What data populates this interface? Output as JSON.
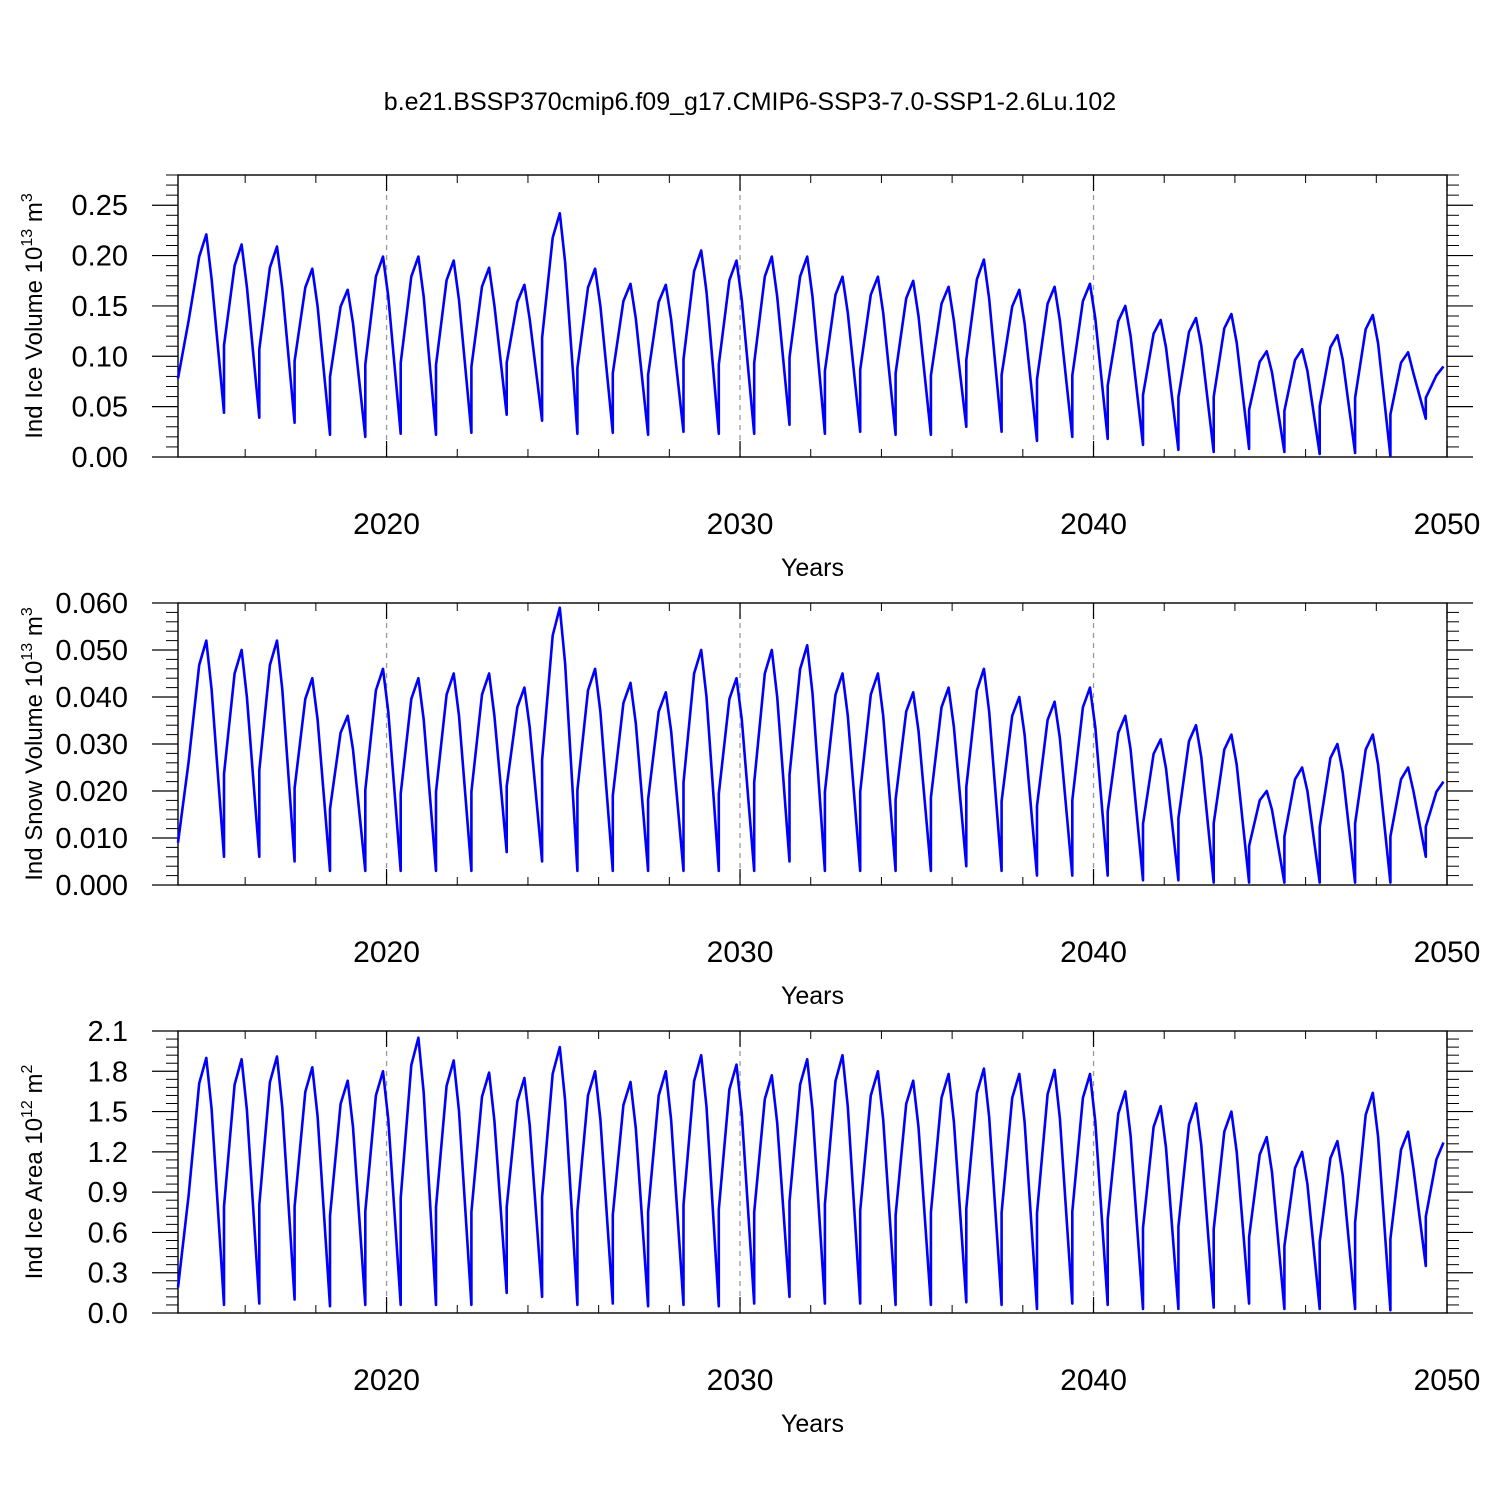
{
  "figure": {
    "title": "b.e21.BSSP370cmip6.f09_g17.CMIP6-SSP3-7.0-SSP1-2.6Lu.102",
    "line_color": "#0000ff",
    "grid_color": "#999999"
  },
  "chart_data": [
    {
      "type": "line",
      "id": "ice-volume",
      "title": "",
      "xlabel": "Years",
      "ylabel": {
        "base": "Ind Ice Volume 10",
        "exp": "13",
        "unit": " m",
        "unit_exp": "3"
      },
      "xlim": [
        2014.1,
        2050.0
      ],
      "ylim": [
        0,
        0.28
      ],
      "xticks": [
        2020,
        2030,
        2040,
        2050
      ],
      "yticks": [
        0.0,
        0.05,
        0.1,
        0.15,
        0.2,
        0.25
      ],
      "ytick_labels": [
        "0.00",
        "0.05",
        "0.10",
        "0.15",
        "0.20",
        "0.25"
      ],
      "grid": "dashed vertical at decades",
      "series": [
        {
          "name": "Ind Ice Volume",
          "start_year": 2014.1,
          "peak_time": 2014.9,
          "maxima": [
            0.221,
            0.211,
            0.209,
            0.187,
            0.166,
            0.199,
            0.199,
            0.195,
            0.188,
            0.171,
            0.242,
            0.187,
            0.172,
            0.171,
            0.205,
            0.195,
            0.199,
            0.199,
            0.179,
            0.179,
            0.175,
            0.169,
            0.196,
            0.166,
            0.169,
            0.172,
            0.15,
            0.136,
            0.138,
            0.142,
            0.105,
            0.107,
            0.121,
            0.141,
            0.104,
            0.09
          ],
          "minima": [
            0.078,
            0.044,
            0.039,
            0.034,
            0.022,
            0.02,
            0.023,
            0.022,
            0.024,
            0.042,
            0.036,
            0.023,
            0.024,
            0.022,
            0.025,
            0.023,
            0.023,
            0.032,
            0.023,
            0.025,
            0.022,
            0.022,
            0.03,
            0.025,
            0.016,
            0.02,
            0.018,
            0.012,
            0.007,
            0.005,
            0.008,
            0.005,
            0.003,
            0.004,
            0.001,
            0.038
          ]
        }
      ]
    },
    {
      "type": "line",
      "id": "snow-volume",
      "title": "",
      "xlabel": "Years",
      "ylabel": {
        "base": "Ind Snow Volume 10",
        "exp": "13",
        "unit": " m",
        "unit_exp": "3"
      },
      "xlim": [
        2014.1,
        2050.0
      ],
      "ylim": [
        0,
        0.06
      ],
      "xticks": [
        2020,
        2030,
        2040,
        2050
      ],
      "yticks": [
        0.0,
        0.01,
        0.02,
        0.03,
        0.04,
        0.05,
        0.06
      ],
      "ytick_labels": [
        "0.000",
        "0.010",
        "0.020",
        "0.030",
        "0.040",
        "0.050",
        "0.060"
      ],
      "grid": "dashed vertical at decades",
      "series": [
        {
          "name": "Ind Snow Volume",
          "start_year": 2014.1,
          "peak_time": 2014.9,
          "maxima": [
            0.052,
            0.05,
            0.052,
            0.044,
            0.036,
            0.046,
            0.044,
            0.045,
            0.045,
            0.042,
            0.059,
            0.046,
            0.043,
            0.041,
            0.05,
            0.044,
            0.05,
            0.051,
            0.045,
            0.045,
            0.041,
            0.042,
            0.046,
            0.04,
            0.039,
            0.042,
            0.036,
            0.031,
            0.034,
            0.032,
            0.02,
            0.025,
            0.03,
            0.032,
            0.025,
            0.022
          ],
          "minima": [
            0.009,
            0.006,
            0.006,
            0.005,
            0.003,
            0.003,
            0.003,
            0.003,
            0.003,
            0.007,
            0.005,
            0.003,
            0.003,
            0.003,
            0.003,
            0.003,
            0.003,
            0.005,
            0.003,
            0.003,
            0.003,
            0.003,
            0.004,
            0.003,
            0.002,
            0.002,
            0.002,
            0.001,
            0.001,
            0.0005,
            0.0005,
            0.0005,
            0.0005,
            0.0005,
            0.0005,
            0.006
          ]
        }
      ]
    },
    {
      "type": "line",
      "id": "ice-area",
      "title": "",
      "xlabel": "Years",
      "ylabel": {
        "base": "Ind Ice Area 10",
        "exp": "12",
        "unit": " m",
        "unit_exp": "2"
      },
      "xlim": [
        2014.1,
        2050.0
      ],
      "ylim": [
        0,
        2.1
      ],
      "xticks": [
        2020,
        2030,
        2040,
        2050
      ],
      "yticks": [
        0.0,
        0.3,
        0.6,
        0.9,
        1.2,
        1.5,
        1.8,
        2.1
      ],
      "ytick_labels": [
        "0.0",
        "0.3",
        "0.6",
        "0.9",
        "1.2",
        "1.5",
        "1.8",
        "2.1"
      ],
      "grid": "dashed vertical at decades",
      "series": [
        {
          "name": "Ind Ice Area",
          "start_year": 2014.1,
          "peak_time": 2014.9,
          "maxima": [
            1.9,
            1.89,
            1.91,
            1.83,
            1.73,
            1.8,
            2.05,
            1.88,
            1.79,
            1.75,
            1.98,
            1.8,
            1.72,
            1.8,
            1.92,
            1.85,
            1.77,
            1.89,
            1.92,
            1.8,
            1.73,
            1.78,
            1.82,
            1.78,
            1.81,
            1.78,
            1.65,
            1.54,
            1.56,
            1.5,
            1.31,
            1.2,
            1.28,
            1.64,
            1.35,
            1.27
          ],
          "minima": [
            0.19,
            0.06,
            0.07,
            0.1,
            0.05,
            0.06,
            0.06,
            0.06,
            0.06,
            0.15,
            0.12,
            0.06,
            0.07,
            0.05,
            0.06,
            0.05,
            0.07,
            0.12,
            0.07,
            0.07,
            0.06,
            0.06,
            0.08,
            0.06,
            0.03,
            0.07,
            0.06,
            0.03,
            0.03,
            0.04,
            0.07,
            0.03,
            0.03,
            0.03,
            0.02,
            0.35
          ]
        }
      ]
    }
  ]
}
